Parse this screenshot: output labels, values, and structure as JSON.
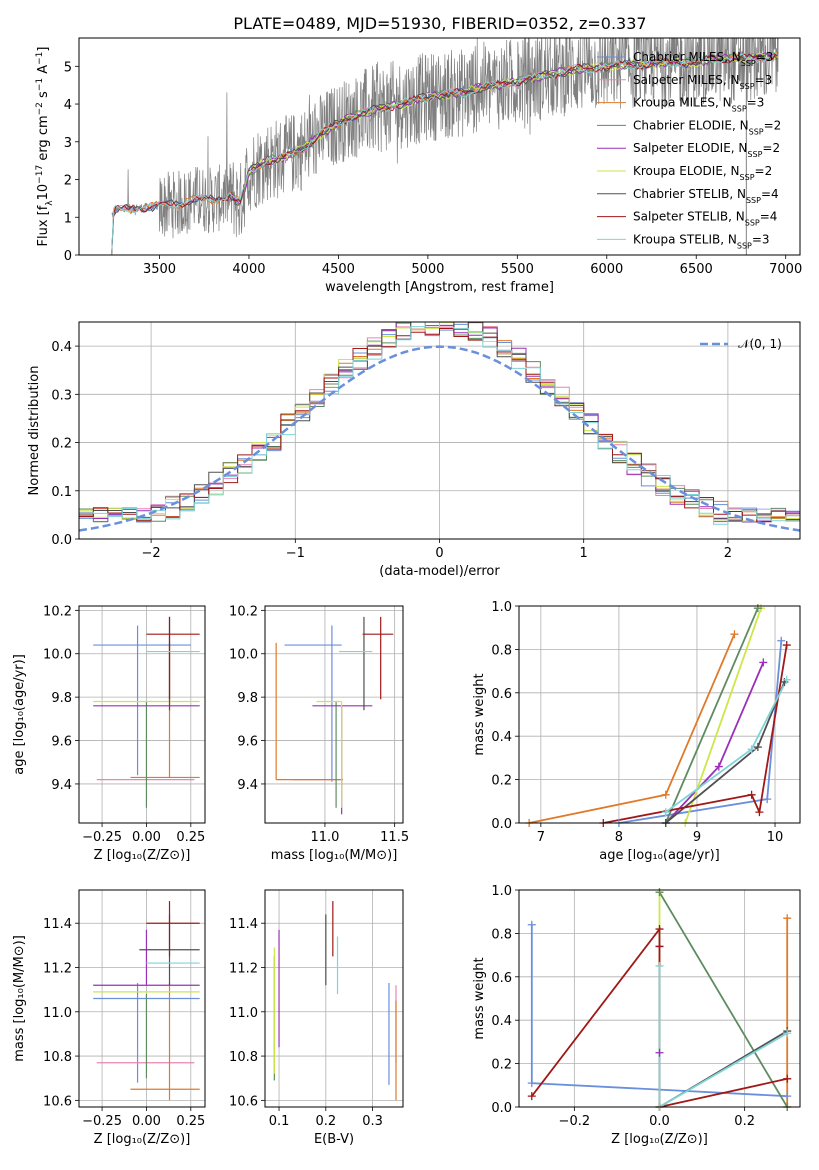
{
  "title": "PLATE=0489, MJD=51930, FIBERID=0352, z=0.337",
  "colors": {
    "chabrier_miles": "#6a8fdc",
    "salpeter_miles": "#e884b6",
    "kroupa_miles": "#e07a2a",
    "chabrier_elodie": "#5e8c60",
    "salpeter_elodie": "#9a30b8",
    "kroupa_elodie": "#cde64a",
    "chabrier_stelib": "#505050",
    "salpeter_stelib": "#a01818",
    "kroupa_stelib": "#7fd4d8",
    "data_spectrum": "#808080",
    "normal_curve": "#6a8fdc"
  },
  "chart_data": [
    {
      "id": "spectrum",
      "type": "line",
      "xlabel": "wavelength [Angstrom, rest frame]",
      "ylabel_parts": [
        "Flux [f",
        "λ",
        "10",
        "−17",
        " erg cm",
        "−2",
        " s",
        "−1",
        " A",
        "−1",
        "]"
      ],
      "xlim": [
        3050,
        7080
      ],
      "ylim": [
        0,
        5.75
      ],
      "xticks": [
        3500,
        4000,
        4500,
        5000,
        5500,
        6000,
        6500,
        7000
      ],
      "yticks": [
        0,
        1,
        2,
        3,
        4,
        5
      ],
      "legend": [
        {
          "text": "Chabrier MILES, N",
          "sub": "SSP",
          "tail": "=3",
          "key": "chabrier_miles"
        },
        {
          "text": "Salpeter MILES, N",
          "sub": "SSP",
          "tail": "=3",
          "key": "salpeter_miles"
        },
        {
          "text": "Kroupa MILES, N",
          "sub": "SSP",
          "tail": "=3",
          "key": "kroupa_miles"
        },
        {
          "text": "Chabrier ELODIE, N",
          "sub": "SSP",
          "tail": "=2",
          "key": "chabrier_elodie"
        },
        {
          "text": "Salpeter ELODIE, N",
          "sub": "SSP",
          "tail": "=2",
          "key": "salpeter_elodie"
        },
        {
          "text": "Kroupa ELODIE, N",
          "sub": "SSP",
          "tail": "=2",
          "key": "kroupa_elodie"
        },
        {
          "text": "Chabrier STELIB, N",
          "sub": "SSP",
          "tail": "=4",
          "key": "chabrier_stelib"
        },
        {
          "text": "Salpeter STELIB, N",
          "sub": "SSP",
          "tail": "=4",
          "key": "salpeter_stelib"
        },
        {
          "text": "Kroupa STELIB, N",
          "sub": "SSP",
          "tail": "=3",
          "key": "kroupa_stelib"
        }
      ],
      "model_continuum": [
        [
          3230,
          0.0
        ],
        [
          3232,
          1.05
        ],
        [
          3260,
          1.2
        ],
        [
          3400,
          1.25
        ],
        [
          3500,
          1.3
        ],
        [
          3600,
          1.35
        ],
        [
          3700,
          1.5
        ],
        [
          3800,
          1.45
        ],
        [
          3900,
          1.6
        ],
        [
          3950,
          1.35
        ],
        [
          4000,
          2.2
        ],
        [
          4100,
          2.5
        ],
        [
          4200,
          2.6
        ],
        [
          4300,
          2.8
        ],
        [
          4400,
          3.2
        ],
        [
          4500,
          3.5
        ],
        [
          4600,
          3.7
        ],
        [
          4700,
          3.85
        ],
        [
          4800,
          3.95
        ],
        [
          4900,
          4.05
        ],
        [
          5000,
          4.2
        ],
        [
          5100,
          4.25
        ],
        [
          5200,
          4.3
        ],
        [
          5300,
          4.45
        ],
        [
          5400,
          4.5
        ],
        [
          5500,
          4.6
        ],
        [
          5600,
          4.7
        ],
        [
          5700,
          4.8
        ],
        [
          5800,
          4.9
        ],
        [
          5900,
          4.95
        ],
        [
          6000,
          5.0
        ],
        [
          6100,
          5.05
        ],
        [
          6200,
          5.05
        ],
        [
          6300,
          5.1
        ],
        [
          6400,
          5.1
        ],
        [
          6500,
          5.1
        ],
        [
          6600,
          5.2
        ],
        [
          6700,
          5.2
        ],
        [
          6800,
          5.2
        ],
        [
          6900,
          5.25
        ],
        [
          6960,
          5.3
        ]
      ]
    },
    {
      "id": "residuals",
      "type": "line",
      "xlabel": "(data-model)/error",
      "ylabel": "Normed distribution",
      "xlim": [
        -2.5,
        2.5
      ],
      "ylim": [
        0,
        0.45
      ],
      "xticks": [
        -2,
        -1,
        0,
        1,
        2
      ],
      "yticks": [
        0.0,
        0.1,
        0.2,
        0.3,
        0.4
      ],
      "legend_label": "𝒩(0, 1)",
      "bin_width": 0.1
    },
    {
      "id": "z_age",
      "type": "scatter",
      "xlabel": "Z [log₁₀(Z/Z⊙)]",
      "ylabel": "age  [log₁₀(age/yr)]",
      "xlim": [
        -0.38,
        0.33
      ],
      "ylim": [
        9.22,
        10.22
      ],
      "xticks": [
        -0.25,
        0.0,
        0.25
      ],
      "yticks": [
        9.4,
        9.6,
        9.8,
        10.0,
        10.2
      ],
      "points": [
        {
          "key": "chabrier_miles",
          "x": -0.05,
          "xerr": [
            0.25,
            0.3
          ],
          "y": 10.04,
          "yerr": [
            0.6,
            0.09
          ]
        },
        {
          "key": "salpeter_miles",
          "x": 0.0,
          "xerr": [
            0.28,
            0.27
          ],
          "y": 9.42,
          "yerr": [
            0.0,
            0.0
          ]
        },
        {
          "key": "kroupa_miles",
          "x": 0.13,
          "xerr": [
            0.22,
            0.17
          ],
          "y": 9.43,
          "yerr": [
            0.0,
            0.62
          ]
        },
        {
          "key": "chabrier_elodie",
          "x": 0.0,
          "xerr": [
            0.0,
            0.0
          ],
          "y": 9.78,
          "yerr": [
            0.49,
            0.0
          ]
        },
        {
          "key": "salpeter_elodie",
          "x": 0.0,
          "xerr": [
            0.3,
            0.3
          ],
          "y": 9.76,
          "yerr": [
            0.0,
            0.0
          ]
        },
        {
          "key": "kroupa_elodie",
          "x": 0.0,
          "xerr": [
            0.3,
            0.3
          ],
          "y": 9.78,
          "yerr": [
            0.0,
            0.0
          ]
        },
        {
          "key": "chabrier_stelib",
          "x": 0.13,
          "xerr": [
            0.0,
            0.0
          ],
          "y": 10.05,
          "yerr": [
            0.31,
            0.12
          ]
        },
        {
          "key": "salpeter_stelib",
          "x": 0.13,
          "xerr": [
            0.13,
            0.17
          ],
          "y": 10.09,
          "yerr": [
            0.3,
            0.08
          ]
        },
        {
          "key": "kroupa_stelib",
          "x": 0.13,
          "xerr": [
            0.13,
            0.17
          ],
          "y": 10.01,
          "yerr": [
            0.0,
            0.0
          ]
        }
      ]
    },
    {
      "id": "mass_age",
      "type": "scatter",
      "xlabel": "mass [log₁₀(M/M⊙)]",
      "xlim": [
        10.57,
        11.56
      ],
      "ylim": [
        9.22,
        10.22
      ],
      "xticks": [
        11.0,
        11.5
      ],
      "yticks": [
        9.4,
        9.6,
        9.8,
        10.0,
        10.2
      ],
      "points": [
        {
          "key": "chabrier_miles",
          "x": 11.05,
          "xerr": [
            0.34,
            0.07
          ],
          "y": 10.04,
          "yerr": [
            0.63,
            0.09
          ]
        },
        {
          "key": "salpeter_miles",
          "x": 10.77,
          "xerr": [
            0.0,
            0.35
          ],
          "y": 9.42,
          "yerr": [
            0.0,
            0.0
          ]
        },
        {
          "key": "kroupa_miles",
          "x": 10.65,
          "xerr": [
            0.0,
            0.48
          ],
          "y": 9.42,
          "yerr": [
            0.0,
            0.63
          ]
        },
        {
          "key": "chabrier_elodie",
          "x": 11.08,
          "xerr": [
            0.0,
            0.0
          ],
          "y": 9.78,
          "yerr": [
            0.49,
            0.0
          ]
        },
        {
          "key": "salpeter_elodie",
          "x": 11.12,
          "xerr": [
            0.21,
            0.22
          ],
          "y": 9.76,
          "yerr": [
            0.5,
            0.0
          ]
        },
        {
          "key": "kroupa_elodie",
          "x": 11.12,
          "xerr": [
            0.18,
            0.0
          ],
          "y": 9.78,
          "yerr": [
            0.49,
            0.0
          ]
        },
        {
          "key": "chabrier_stelib",
          "x": 11.28,
          "xerr": [
            0.0,
            0.0
          ],
          "y": 10.05,
          "yerr": [
            0.31,
            0.12
          ]
        },
        {
          "key": "salpeter_stelib",
          "x": 11.4,
          "xerr": [
            0.13,
            0.09
          ],
          "y": 10.09,
          "yerr": [
            0.3,
            0.08
          ]
        },
        {
          "key": "kroupa_stelib",
          "x": 11.22,
          "xerr": [
            0.12,
            0.12
          ],
          "y": 10.01,
          "yerr": [
            0.0,
            0.0
          ]
        }
      ]
    },
    {
      "id": "age_weight",
      "type": "line",
      "xlabel": "age  [log₁₀(age/yr)]",
      "ylabel": "mass weight",
      "xlim": [
        6.72,
        10.32
      ],
      "ylim": [
        0.0,
        1.0
      ],
      "xticks": [
        7,
        8,
        9,
        10
      ],
      "yticks": [
        0.0,
        0.2,
        0.4,
        0.6,
        0.8,
        1.0
      ],
      "series": [
        {
          "key": "chabrier_miles",
          "points": [
            [
              8.0,
              0.0
            ],
            [
              9.9,
              0.11
            ],
            [
              10.08,
              0.84
            ]
          ]
        },
        {
          "key": "kroupa_miles",
          "points": [
            [
              6.85,
              0.0
            ],
            [
              8.6,
              0.13
            ],
            [
              9.48,
              0.87
            ]
          ]
        },
        {
          "key": "salpeter_elodie",
          "points": [
            [
              8.6,
              0.0
            ],
            [
              9.28,
              0.26
            ],
            [
              9.85,
              0.74
            ]
          ]
        },
        {
          "key": "kroupa_elodie",
          "points": [
            [
              8.85,
              0.0
            ],
            [
              9.82,
              0.99
            ]
          ]
        },
        {
          "key": "chabrier_elodie",
          "points": [
            [
              8.6,
              0.0
            ],
            [
              9.78,
              0.99
            ]
          ]
        },
        {
          "key": "chabrier_stelib",
          "points": [
            [
              8.6,
              0.0
            ],
            [
              9.78,
              0.35
            ],
            [
              10.12,
              0.65
            ]
          ]
        },
        {
          "key": "salpeter_stelib",
          "points": [
            [
              7.8,
              0.0
            ],
            [
              9.7,
              0.13
            ],
            [
              9.8,
              0.05
            ],
            [
              10.15,
              0.82
            ]
          ]
        },
        {
          "key": "kroupa_stelib",
          "points": [
            [
              8.6,
              0.05
            ],
            [
              9.7,
              0.34
            ],
            [
              10.15,
              0.66
            ]
          ]
        }
      ]
    },
    {
      "id": "z_mass",
      "type": "scatter",
      "xlabel": "Z [log₁₀(Z/Z⊙)]",
      "ylabel": "mass [log₁₀(M/M⊙)]",
      "xlim": [
        -0.38,
        0.33
      ],
      "ylim": [
        10.57,
        11.55
      ],
      "xticks": [
        -0.25,
        0.0,
        0.25
      ],
      "yticks": [
        10.6,
        10.8,
        11.0,
        11.2,
        11.4
      ],
      "points": [
        {
          "key": "chabrier_miles",
          "x": -0.05,
          "xerr": [
            0.25,
            0.35
          ],
          "y": 11.06,
          "yerr": [
            0.38,
            0.07
          ]
        },
        {
          "key": "salpeter_miles",
          "x": 0.0,
          "xerr": [
            0.28,
            0.27
          ],
          "y": 10.77,
          "yerr": [
            0.0,
            0.0
          ]
        },
        {
          "key": "kroupa_miles",
          "x": 0.13,
          "xerr": [
            0.22,
            0.17
          ],
          "y": 10.65,
          "yerr": [
            0.05,
            0.48
          ]
        },
        {
          "key": "chabrier_elodie",
          "x": 0.0,
          "xerr": [
            0.0,
            0.0
          ],
          "y": 11.08,
          "yerr": [
            0.38,
            0.0
          ]
        },
        {
          "key": "salpeter_elodie",
          "x": 0.0,
          "xerr": [
            0.3,
            0.3
          ],
          "y": 11.12,
          "yerr": [
            0.0,
            0.25
          ]
        },
        {
          "key": "kroupa_elodie",
          "x": 0.0,
          "xerr": [
            0.3,
            0.3
          ],
          "y": 11.09,
          "yerr": [
            0.0,
            0.0
          ]
        },
        {
          "key": "chabrier_stelib",
          "x": 0.13,
          "xerr": [
            0.17,
            0.17
          ],
          "y": 11.28,
          "yerr": [
            0.16,
            0.16
          ]
        },
        {
          "key": "salpeter_stelib",
          "x": 0.13,
          "xerr": [
            0.13,
            0.17
          ],
          "y": 11.4,
          "yerr": [
            0.15,
            0.1
          ]
        },
        {
          "key": "kroupa_stelib",
          "x": 0.13,
          "xerr": [
            0.13,
            0.17
          ],
          "y": 11.22,
          "yerr": [
            0.0,
            0.0
          ]
        }
      ]
    },
    {
      "id": "ebv_mass",
      "type": "scatter",
      "xlabel": "E(B-V)",
      "xlim": [
        0.07,
        0.365
      ],
      "ylim": [
        10.57,
        11.55
      ],
      "xticks": [
        0.1,
        0.2,
        0.3
      ],
      "yticks": [
        10.6,
        10.8,
        11.0,
        11.2,
        11.4
      ],
      "points": [
        {
          "key": "chabrier_miles",
          "x": 0.335,
          "yerr": [
            10.67,
            11.13
          ]
        },
        {
          "key": "salpeter_miles",
          "x": 0.35,
          "yerr": [
            10.77,
            11.12
          ]
        },
        {
          "key": "kroupa_miles",
          "x": 0.35,
          "yerr": [
            10.6,
            11.05
          ]
        },
        {
          "key": "chabrier_elodie",
          "x": 0.09,
          "yerr": [
            10.69,
            11.25
          ]
        },
        {
          "key": "salpeter_elodie",
          "x": 0.1,
          "yerr": [
            10.84,
            11.37
          ]
        },
        {
          "key": "kroupa_elodie",
          "x": 0.09,
          "yerr": [
            10.72,
            11.29
          ]
        },
        {
          "key": "chabrier_stelib",
          "x": 0.2,
          "yerr": [
            11.12,
            11.44
          ]
        },
        {
          "key": "salpeter_stelib",
          "x": 0.215,
          "yerr": [
            11.25,
            11.5
          ]
        },
        {
          "key": "kroupa_stelib",
          "x": 0.225,
          "yerr": [
            11.08,
            11.34
          ]
        }
      ]
    },
    {
      "id": "z_weight",
      "type": "line",
      "xlabel": "Z [log₁₀(Z/Z⊙)]",
      "ylabel": "mass weight",
      "xlim": [
        -0.33,
        0.33
      ],
      "ylim": [
        0.0,
        1.0
      ],
      "xticks": [
        -0.2,
        0.0,
        0.2
      ],
      "yticks": [
        0.0,
        0.2,
        0.4,
        0.6,
        0.8,
        1.0
      ],
      "series": [
        {
          "key": "chabrier_miles",
          "points": [
            [
              -0.3,
              0.84
            ],
            [
              -0.3,
              0.11
            ],
            [
              0.3,
              0.05
            ]
          ]
        },
        {
          "key": "kroupa_miles",
          "points": [
            [
              0.3,
              0.87
            ],
            [
              0.3,
              0.0
            ],
            [
              0.3,
              0.13
            ]
          ]
        },
        {
          "key": "salpeter_elodie",
          "points": [
            [
              0.0,
              0.25
            ],
            [
              0.0,
              0.74
            ]
          ]
        },
        {
          "key": "kroupa_elodie",
          "points": [
            [
              0.0,
              0.0
            ],
            [
              0.0,
              0.99
            ]
          ]
        },
        {
          "key": "chabrier_elodie",
          "points": [
            [
              0.0,
              0.99
            ],
            [
              0.3,
              0.0
            ]
          ]
        },
        {
          "key": "chabrier_stelib",
          "points": [
            [
              0.0,
              0.0
            ],
            [
              0.3,
              0.35
            ]
          ]
        },
        {
          "key": "salpeter_stelib",
          "points": [
            [
              -0.3,
              0.05
            ],
            [
              0.0,
              0.82
            ],
            [
              0.0,
              0.74
            ],
            [
              0.0,
              0.0
            ],
            [
              0.3,
              0.13
            ]
          ]
        },
        {
          "key": "kroupa_stelib",
          "points": [
            [
              0.0,
              0.65
            ],
            [
              0.0,
              0.0
            ],
            [
              0.3,
              0.34
            ]
          ]
        }
      ]
    }
  ]
}
